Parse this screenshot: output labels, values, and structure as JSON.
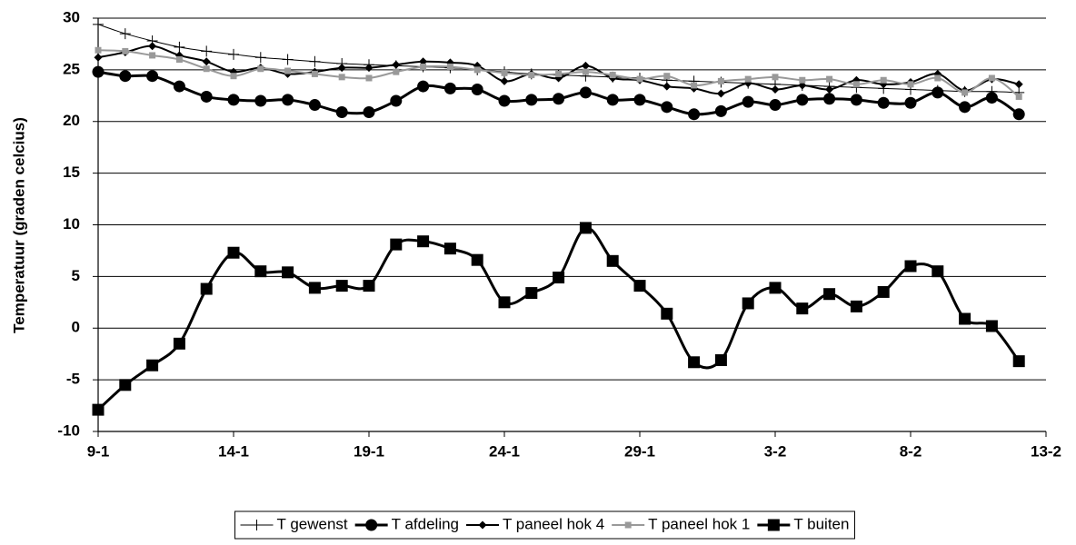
{
  "chart_data": {
    "type": "line",
    "y_label": "Temperatuur (graden celcius)",
    "x": [
      "9-1",
      "10-1",
      "11-1",
      "12-1",
      "13-1",
      "14-1",
      "15-1",
      "16-1",
      "17-1",
      "18-1",
      "19-1",
      "20-1",
      "21-1",
      "22-1",
      "23-1",
      "24-1",
      "25-1",
      "26-1",
      "27-1",
      "28-1",
      "29-1",
      "30-1",
      "31-1",
      "1-2",
      "2-2",
      "3-2",
      "4-2",
      "5-2",
      "6-2",
      "7-2",
      "8-2",
      "9-2",
      "10-2",
      "11-2",
      "12-2"
    ],
    "xlim": [
      "9-1",
      "13-2"
    ],
    "xticks": [
      "9-1",
      "14-1",
      "19-1",
      "24-1",
      "29-1",
      "3-2",
      "8-2",
      "13-2"
    ],
    "ylim": [
      -10,
      30
    ],
    "yticks": [
      -10,
      -5,
      0,
      5,
      10,
      15,
      20,
      25,
      30
    ],
    "grid": true,
    "legend": "bottom",
    "series": [
      {
        "name": "T gewenst",
        "color": "#000000",
        "marker": "plus",
        "values": [
          29.4,
          28.5,
          27.8,
          27.2,
          26.8,
          26.5,
          26.2,
          26.0,
          25.8,
          25.6,
          25.5,
          25.4,
          25.3,
          25.2,
          25.0,
          24.8,
          24.6,
          24.5,
          24.4,
          24.3,
          24.2,
          24.0,
          23.9,
          23.8,
          23.7,
          23.6,
          23.5,
          23.4,
          23.3,
          23.2,
          23.1,
          23.0,
          22.9,
          22.9,
          22.8
        ]
      },
      {
        "name": "T afdeling",
        "color": "#000000",
        "marker": "circle",
        "values": [
          24.8,
          24.4,
          24.4,
          23.4,
          22.4,
          22.1,
          22.0,
          22.1,
          21.6,
          20.9,
          20.9,
          22.0,
          23.4,
          23.2,
          23.1,
          22.0,
          22.1,
          22.2,
          22.8,
          22.1,
          22.1,
          21.4,
          20.7,
          21.0,
          21.9,
          21.6,
          22.1,
          22.2,
          22.1,
          21.8,
          21.8,
          22.8,
          21.4,
          22.3,
          20.7
        ]
      },
      {
        "name": "T paneel hok 4",
        "color": "#000000",
        "marker": "diamond",
        "values": [
          26.2,
          26.7,
          27.3,
          26.4,
          25.8,
          24.8,
          25.2,
          24.6,
          24.8,
          25.2,
          25.2,
          25.5,
          25.8,
          25.7,
          25.4,
          23.9,
          24.6,
          24.2,
          25.4,
          24.2,
          24.0,
          23.4,
          23.2,
          22.7,
          23.7,
          23.1,
          23.5,
          23.1,
          24.0,
          23.6,
          23.8,
          24.6,
          23.0,
          24.1,
          23.6
        ]
      },
      {
        "name": "T paneel hok 1",
        "color": "#999999",
        "marker": "square",
        "values": [
          26.9,
          26.8,
          26.4,
          26.0,
          25.1,
          24.4,
          25.1,
          24.9,
          24.6,
          24.3,
          24.2,
          24.8,
          25.3,
          25.3,
          25.0,
          24.7,
          24.5,
          24.6,
          24.8,
          24.5,
          24.1,
          24.4,
          23.5,
          23.9,
          24.1,
          24.3,
          24.0,
          24.1,
          23.6,
          24.0,
          23.6,
          24.2,
          22.8,
          24.2,
          22.4
        ]
      },
      {
        "name": "T buiten",
        "color": "#000000",
        "marker": "big-square",
        "values": [
          -7.9,
          -5.5,
          -3.6,
          -1.5,
          3.8,
          7.3,
          5.5,
          5.4,
          3.9,
          4.1,
          4.1,
          8.1,
          8.4,
          7.7,
          6.6,
          2.5,
          3.4,
          4.9,
          9.7,
          6.5,
          4.1,
          1.4,
          -3.3,
          -3.1,
          2.4,
          3.9,
          1.9,
          3.3,
          2.1,
          3.5,
          6.0,
          5.5,
          0.9,
          0.2,
          -3.2
        ]
      }
    ]
  }
}
